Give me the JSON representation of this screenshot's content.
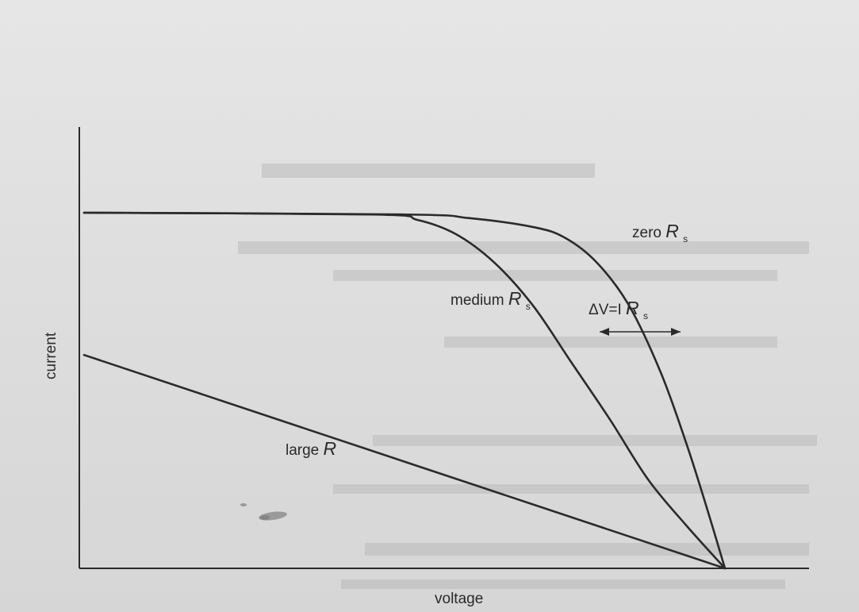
{
  "chart_data": {
    "type": "line",
    "title": "",
    "xlabel": "voltage",
    "ylabel": "current",
    "grid": false,
    "legend": "none",
    "series": [
      {
        "name": "zero R s",
        "points": [
          [
            0,
            1.0
          ],
          [
            0.5,
            0.995
          ],
          [
            0.6,
            0.985
          ],
          [
            0.7,
            0.96
          ],
          [
            0.75,
            0.93
          ],
          [
            0.8,
            0.86
          ],
          [
            0.85,
            0.74
          ],
          [
            0.9,
            0.55
          ],
          [
            0.94,
            0.35
          ],
          [
            0.97,
            0.18
          ],
          [
            1.0,
            0.0
          ]
        ]
      },
      {
        "name": "medium R s",
        "points": [
          [
            0,
            1.0
          ],
          [
            0.45,
            0.995
          ],
          [
            0.52,
            0.98
          ],
          [
            0.58,
            0.94
          ],
          [
            0.64,
            0.86
          ],
          [
            0.7,
            0.74
          ],
          [
            0.76,
            0.58
          ],
          [
            0.82,
            0.42
          ],
          [
            0.88,
            0.25
          ],
          [
            0.94,
            0.12
          ],
          [
            1.0,
            0.0
          ]
        ]
      },
      {
        "name": "large R",
        "points": [
          [
            0,
            0.6
          ],
          [
            1.0,
            0.0
          ]
        ]
      }
    ],
    "annotations": {
      "zero": {
        "text": "zero ",
        "var": "R",
        "sub": "s"
      },
      "medium": {
        "text": "medium ",
        "var": "R",
        "sub": "s"
      },
      "large": {
        "text": "large ",
        "var": "R"
      },
      "delta": {
        "prefix": "ΔV=I ",
        "var": "R",
        "sub": "s"
      }
    }
  }
}
